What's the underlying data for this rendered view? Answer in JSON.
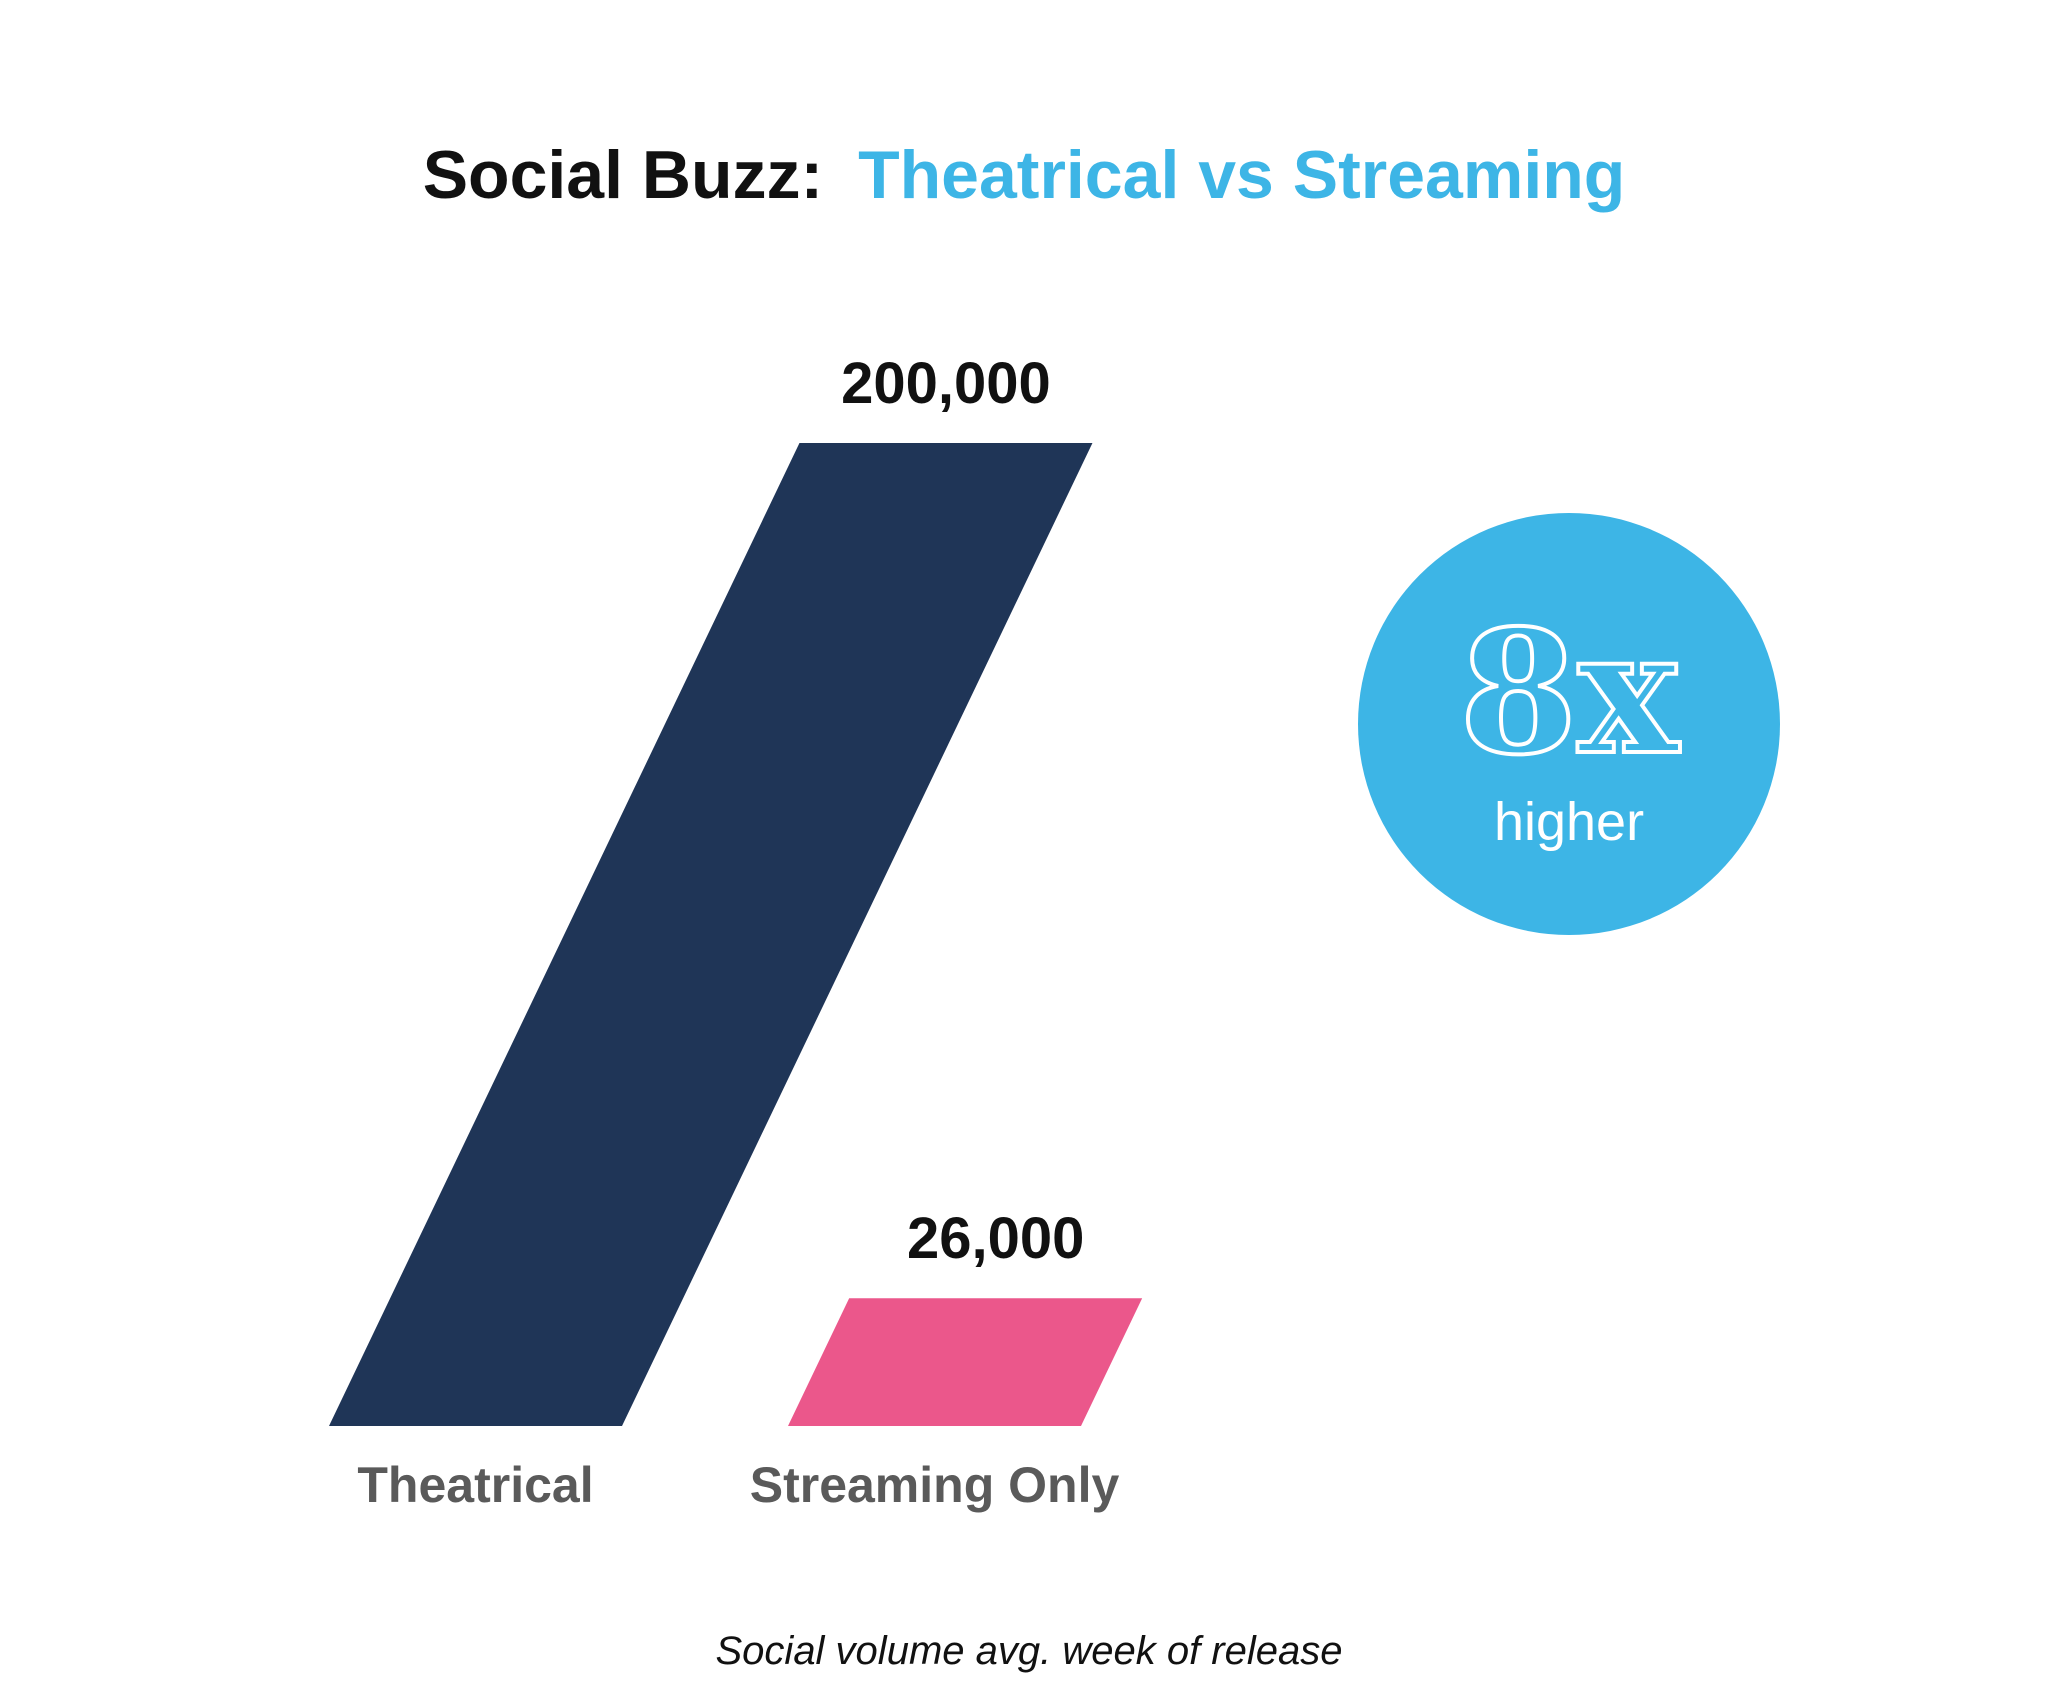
{
  "title": {
    "prefix": "Social Buzz:",
    "highlight": "Theatrical vs Streaming",
    "prefix_color": "#111111",
    "highlight_color": "#3db5e6"
  },
  "chart_data": {
    "type": "bar",
    "categories": [
      "Theatrical",
      "Streaming Only"
    ],
    "values": [
      200000,
      26000
    ],
    "value_labels": [
      "200,000",
      "26,000"
    ],
    "colors": [
      "#1f3557",
      "#eb578b"
    ],
    "bar_style": "slanted parallelogram",
    "ylim": [
      0,
      200000
    ],
    "grid": false
  },
  "callout": {
    "big_text": "8x",
    "small_text": "higher",
    "color": "#3db5e6"
  },
  "footnote": "Social volume avg. week of release"
}
